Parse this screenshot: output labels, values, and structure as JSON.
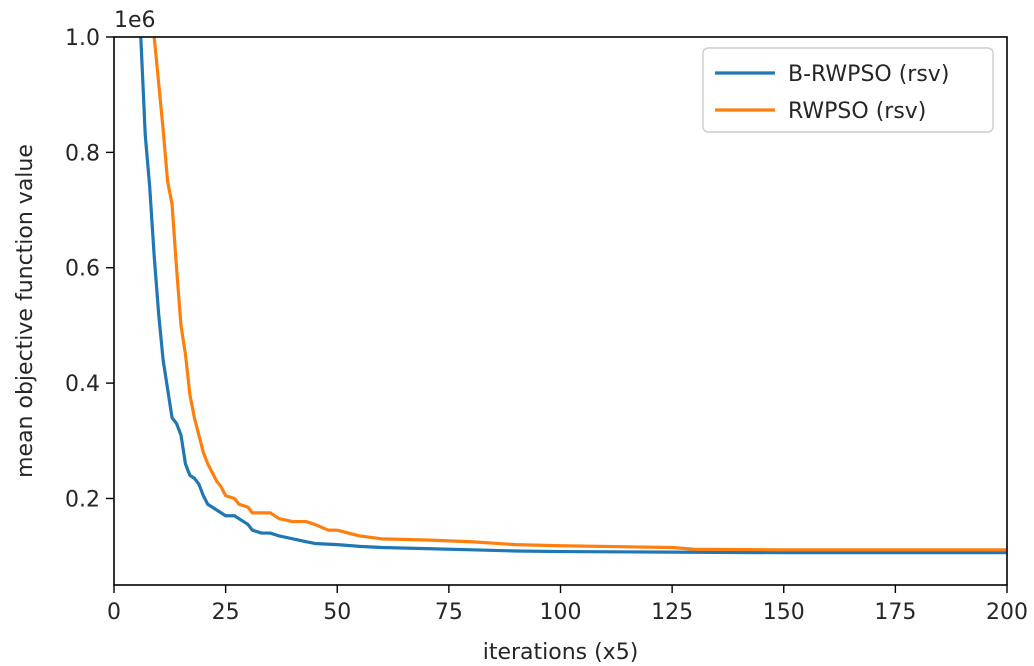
{
  "chart_data": {
    "type": "line",
    "xlabel": "iterations (x5)",
    "ylabel": "mean objective function value",
    "y_offset_label": "1e6",
    "xlim": [
      0,
      200
    ],
    "ylim": [
      0.05,
      1.0
    ],
    "x_ticks": [
      0,
      25,
      50,
      75,
      100,
      125,
      150,
      175,
      200
    ],
    "y_ticks": [
      0.2,
      0.4,
      0.6,
      0.8,
      1.0
    ],
    "x_tick_labels": [
      "0",
      "25",
      "50",
      "75",
      "100",
      "125",
      "150",
      "175",
      "200"
    ],
    "y_tick_labels": [
      "0.2",
      "0.4",
      "0.6",
      "0.8",
      "1.0"
    ],
    "grid": false,
    "legend_position": "top-right",
    "series": [
      {
        "name": "B-RWPSO (rsv)",
        "color": "#1f77b4",
        "x": [
          6,
          7,
          8,
          9,
          10,
          11,
          12,
          13,
          14,
          15,
          16,
          17,
          18,
          19,
          20,
          21,
          22,
          23,
          24,
          25,
          27,
          28,
          30,
          31,
          33,
          35,
          37,
          40,
          43,
          45,
          50,
          55,
          60,
          70,
          80,
          90,
          100,
          125,
          150,
          175,
          200
        ],
        "y": [
          1.0,
          0.83,
          0.74,
          0.62,
          0.52,
          0.44,
          0.39,
          0.34,
          0.33,
          0.31,
          0.26,
          0.24,
          0.235,
          0.225,
          0.205,
          0.19,
          0.185,
          0.18,
          0.175,
          0.17,
          0.17,
          0.165,
          0.155,
          0.145,
          0.14,
          0.14,
          0.135,
          0.13,
          0.125,
          0.122,
          0.12,
          0.117,
          0.115,
          0.113,
          0.111,
          0.109,
          0.108,
          0.107,
          0.106,
          0.106,
          0.106
        ]
      },
      {
        "name": "RWPSO (rsv)",
        "color": "#ff7f0e",
        "x": [
          9,
          10,
          11,
          12,
          13,
          14,
          15,
          16,
          17,
          18,
          19,
          20,
          21,
          22,
          23,
          24,
          25,
          27,
          28,
          30,
          31,
          33,
          35,
          37,
          40,
          43,
          45,
          48,
          50,
          55,
          60,
          70,
          80,
          90,
          100,
          125,
          130,
          150,
          175,
          200
        ],
        "y": [
          1.0,
          0.92,
          0.84,
          0.75,
          0.71,
          0.6,
          0.5,
          0.45,
          0.38,
          0.34,
          0.31,
          0.28,
          0.26,
          0.245,
          0.23,
          0.22,
          0.205,
          0.2,
          0.19,
          0.185,
          0.175,
          0.175,
          0.175,
          0.165,
          0.16,
          0.16,
          0.155,
          0.145,
          0.145,
          0.135,
          0.13,
          0.128,
          0.125,
          0.12,
          0.118,
          0.115,
          0.112,
          0.111,
          0.111,
          0.111
        ]
      }
    ]
  }
}
